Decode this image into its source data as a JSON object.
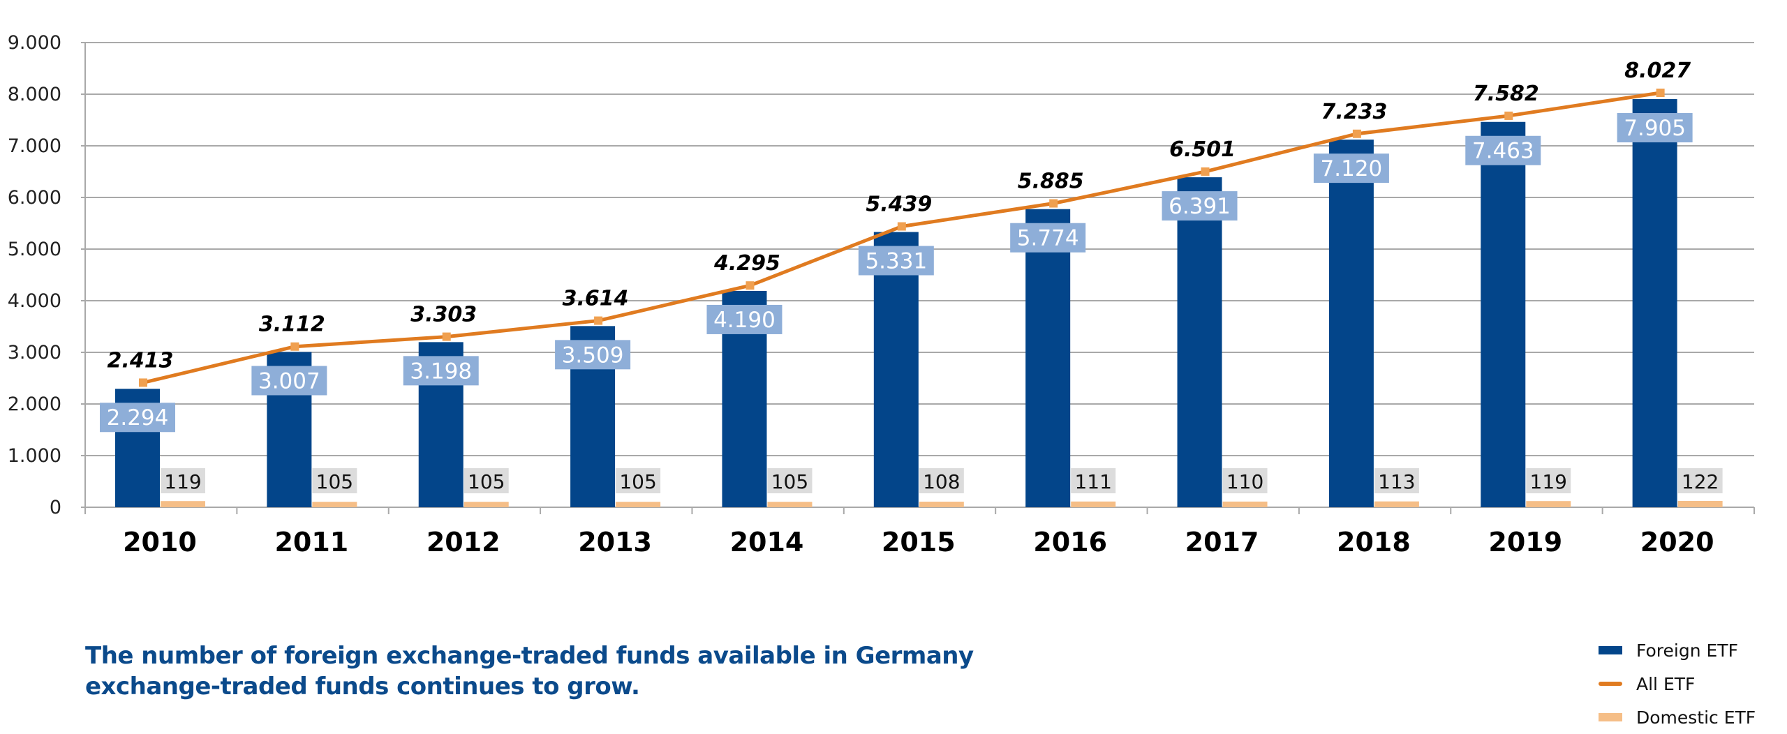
{
  "chart_data": {
    "type": "bar",
    "title": "The number of foreign exchange-traded funds available in Germany exchange-traded funds continues to grow.",
    "xlabel": "",
    "ylabel": "",
    "ylim": [
      0,
      9000
    ],
    "yticks": [
      0,
      1000,
      2000,
      3000,
      4000,
      5000,
      6000,
      7000,
      8000,
      9000
    ],
    "ytick_labels": [
      "0",
      "1.000",
      "2.000",
      "3.000",
      "4.000",
      "5.000",
      "6.000",
      "7.000",
      "8.000",
      "9.000"
    ],
    "grid": true,
    "legend_position": "bottom-right",
    "categories": [
      "2010",
      "2011",
      "2012",
      "2013",
      "2014",
      "2015",
      "2016",
      "2017",
      "2018",
      "2019",
      "2020"
    ],
    "series": [
      {
        "name": "Foreign ETF",
        "kind": "bar",
        "color": "#03458a",
        "label_box_color": "#8eaed8",
        "values": [
          2294,
          3007,
          3198,
          3509,
          4190,
          5331,
          5774,
          6391,
          7120,
          7463,
          7905
        ],
        "labels": [
          "2.294",
          "3.007",
          "3.198",
          "3.509",
          "4.190",
          "5.331",
          "5.774",
          "6.391",
          "7.120",
          "7.463",
          "7.905"
        ]
      },
      {
        "name": "Domestic ETF",
        "kind": "bar",
        "color": "#f5be87",
        "label_box_color": "#dcdcdc",
        "values": [
          119,
          105,
          105,
          105,
          105,
          108,
          111,
          110,
          113,
          119,
          122
        ],
        "labels": [
          "119",
          "105",
          "105",
          "105",
          "105",
          "108",
          "111",
          "110",
          "113",
          "119",
          "122"
        ]
      },
      {
        "name": "All ETF",
        "kind": "line",
        "color": "#e07b20",
        "marker_color": "#f0a050",
        "values": [
          2413,
          3112,
          3303,
          3614,
          4295,
          5439,
          5885,
          6501,
          7233,
          7582,
          8027
        ],
        "labels": [
          "2.413",
          "3.112",
          "3.303",
          "3.614",
          "4.295",
          "5.439",
          "5.885",
          "6.501",
          "7.233",
          "7.582",
          "8.027"
        ]
      }
    ]
  },
  "caption": {
    "line1": "The number of foreign exchange-traded funds available in Germany",
    "line2": "exchange-traded funds continues to grow."
  },
  "legend": [
    {
      "label": "Foreign ETF",
      "color": "#03458a",
      "kind": "bar"
    },
    {
      "label": "All ETF",
      "color": "#e07b20",
      "kind": "line"
    },
    {
      "label": "Domestic ETF",
      "color": "#f5be87",
      "kind": "bar"
    }
  ]
}
